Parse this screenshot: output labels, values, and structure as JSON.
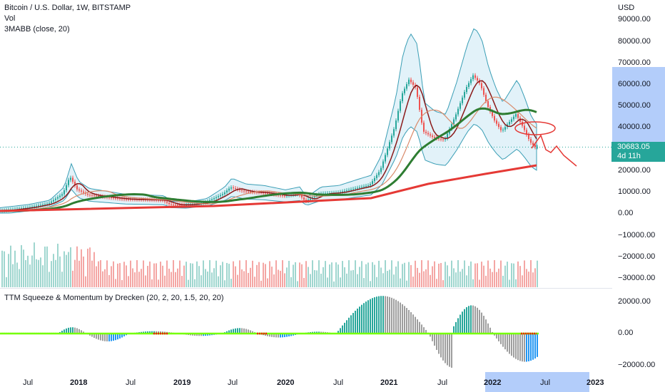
{
  "legend": {
    "main_title": "Bitcoin / U.S. Dollar, 1W, BITSTAMP",
    "vol": "Vol",
    "ma_indicator": "3MABB (close, 20)",
    "squeeze_indicator": "TTM Squeeze & Momentum by Drecken (20, 2, 20, 1.5, 20, 20)"
  },
  "price_axis": {
    "currency": "USD",
    "ticks": [
      "90000.00",
      "80000.00",
      "70000.00",
      "60000.00",
      "50000.00",
      "40000.00",
      "30000.00",
      "20000.00",
      "10000.00",
      "0.00",
      "−10000.00",
      "−20000.00",
      "−30000.00"
    ],
    "current_price": "30683.05",
    "countdown": "4d 11h"
  },
  "momentum_axis": {
    "ticks": [
      "20000.00",
      "0.00",
      "−20000.00"
    ]
  },
  "time_axis": {
    "labels": [
      {
        "text": "Jul",
        "bold": false
      },
      {
        "text": "2018",
        "bold": true
      },
      {
        "text": "Jul",
        "bold": false
      },
      {
        "text": "2019",
        "bold": true
      },
      {
        "text": "Jul",
        "bold": false
      },
      {
        "text": "2020",
        "bold": true
      },
      {
        "text": "Jul",
        "bold": false
      },
      {
        "text": "2021",
        "bold": true
      },
      {
        "text": "Jul",
        "bold": false
      },
      {
        "text": "2022",
        "bold": true
      },
      {
        "text": "Jul",
        "bold": false
      },
      {
        "text": "2023",
        "bold": true
      }
    ]
  },
  "colors": {
    "up": "#26a69a",
    "down": "#ef5350",
    "ma_long": "#e53935",
    "ma_mid": "#2e7d32",
    "ma_short": "#8b1a1a",
    "bb_fill": "#d6ecf7",
    "bb_line": "#3a9eb5",
    "squeeze_on": "#76ff03",
    "squeeze_fire": "#ff0000",
    "highlight": "#b3cdfa"
  }
}
